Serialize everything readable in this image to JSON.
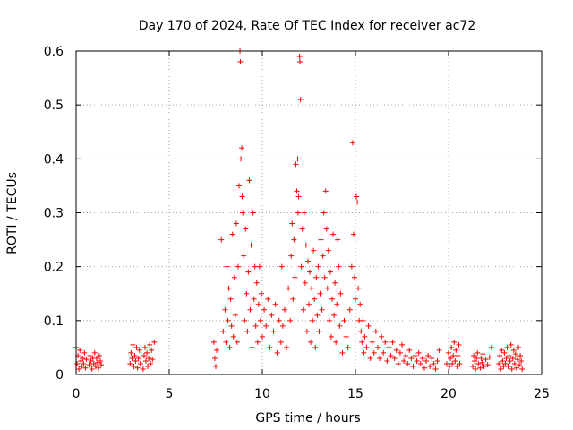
{
  "chart_data": {
    "type": "scatter",
    "title": "Day 170 of 2024, Rate Of TEC Index for receiver ac72",
    "xlabel": "GPS time / hours",
    "ylabel": "ROTI / TECUs",
    "xlim": [
      0,
      25
    ],
    "ylim": [
      0,
      0.6
    ],
    "xticks": [
      "0",
      "5",
      "10",
      "15",
      "20",
      "25"
    ],
    "yticks": [
      "0",
      "0.1",
      "0.2",
      "0.3",
      "0.4",
      "0.5",
      "0.6"
    ],
    "grid": true,
    "marker": "plus",
    "marker_color": "#ff0000",
    "series": [
      {
        "points": [
          [
            0.0,
            0.05
          ],
          [
            0.05,
            0.02
          ],
          [
            0.1,
            0.035
          ],
          [
            0.15,
            0.01
          ],
          [
            0.2,
            0.045
          ],
          [
            0.25,
            0.025
          ],
          [
            0.3,
            0.015
          ],
          [
            0.35,
            0.03
          ],
          [
            0.4,
            0.02
          ],
          [
            0.45,
            0.04
          ],
          [
            0.5,
            0.012
          ],
          [
            0.55,
            0.028
          ],
          [
            0.7,
            0.018
          ],
          [
            0.75,
            0.035
          ],
          [
            0.8,
            0.025
          ],
          [
            0.85,
            0.01
          ],
          [
            0.9,
            0.03
          ],
          [
            0.95,
            0.02
          ],
          [
            1.0,
            0.04
          ],
          [
            1.05,
            0.015
          ],
          [
            1.1,
            0.03
          ],
          [
            1.15,
            0.022
          ],
          [
            1.2,
            0.012
          ],
          [
            1.25,
            0.035
          ],
          [
            1.3,
            0.025
          ],
          [
            1.35,
            0.018
          ],
          [
            2.9,
            0.02
          ],
          [
            2.95,
            0.04
          ],
          [
            3.0,
            0.03
          ],
          [
            3.05,
            0.055
          ],
          [
            3.1,
            0.015
          ],
          [
            3.15,
            0.035
          ],
          [
            3.2,
            0.025
          ],
          [
            3.25,
            0.05
          ],
          [
            3.3,
            0.012
          ],
          [
            3.35,
            0.03
          ],
          [
            3.4,
            0.045
          ],
          [
            3.45,
            0.02
          ],
          [
            3.6,
            0.01
          ],
          [
            3.65,
            0.035
          ],
          [
            3.7,
            0.05
          ],
          [
            3.75,
            0.025
          ],
          [
            3.8,
            0.04
          ],
          [
            3.85,
            0.015
          ],
          [
            3.9,
            0.03
          ],
          [
            3.95,
            0.055
          ],
          [
            4.0,
            0.02
          ],
          [
            4.05,
            0.045
          ],
          [
            4.1,
            0.028
          ],
          [
            4.2,
            0.06
          ],
          [
            7.4,
            0.06
          ],
          [
            7.45,
            0.03
          ],
          [
            7.5,
            0.015
          ],
          [
            7.55,
            0.045
          ],
          [
            7.8,
            0.25
          ],
          [
            7.9,
            0.08
          ],
          [
            8.0,
            0.12
          ],
          [
            8.05,
            0.06
          ],
          [
            8.1,
            0.2
          ],
          [
            8.15,
            0.1
          ],
          [
            8.2,
            0.16
          ],
          [
            8.25,
            0.05
          ],
          [
            8.3,
            0.14
          ],
          [
            8.35,
            0.09
          ],
          [
            8.4,
            0.26
          ],
          [
            8.45,
            0.07
          ],
          [
            8.5,
            0.18
          ],
          [
            8.55,
            0.11
          ],
          [
            8.6,
            0.28
          ],
          [
            8.65,
            0.06
          ],
          [
            8.7,
            0.2
          ],
          [
            8.75,
            0.35
          ],
          [
            8.8,
            0.6
          ],
          [
            8.82,
            0.58
          ],
          [
            8.85,
            0.4
          ],
          [
            8.9,
            0.42
          ],
          [
            8.92,
            0.33
          ],
          [
            8.95,
            0.3
          ],
          [
            9.0,
            0.22
          ],
          [
            9.05,
            0.1
          ],
          [
            9.1,
            0.27
          ],
          [
            9.15,
            0.15
          ],
          [
            9.2,
            0.08
          ],
          [
            9.25,
            0.19
          ],
          [
            9.3,
            0.36
          ],
          [
            9.35,
            0.12
          ],
          [
            9.4,
            0.24
          ],
          [
            9.45,
            0.05
          ],
          [
            9.5,
            0.3
          ],
          [
            9.55,
            0.14
          ],
          [
            9.6,
            0.2
          ],
          [
            9.65,
            0.09
          ],
          [
            9.7,
            0.17
          ],
          [
            9.75,
            0.06
          ],
          [
            9.8,
            0.13
          ],
          [
            9.85,
            0.2
          ],
          [
            9.9,
            0.1
          ],
          [
            9.95,
            0.15
          ],
          [
            10.0,
            0.07
          ],
          [
            10.1,
            0.12
          ],
          [
            10.2,
            0.09
          ],
          [
            10.3,
            0.14
          ],
          [
            10.4,
            0.05
          ],
          [
            10.5,
            0.11
          ],
          [
            10.6,
            0.08
          ],
          [
            10.7,
            0.13
          ],
          [
            10.8,
            0.04
          ],
          [
            10.9,
            0.1
          ],
          [
            11.0,
            0.06
          ],
          [
            11.05,
            0.2
          ],
          [
            11.1,
            0.09
          ],
          [
            11.2,
            0.12
          ],
          [
            11.3,
            0.05
          ],
          [
            11.4,
            0.16
          ],
          [
            11.5,
            0.1
          ],
          [
            11.55,
            0.22
          ],
          [
            11.6,
            0.28
          ],
          [
            11.65,
            0.14
          ],
          [
            11.7,
            0.25
          ],
          [
            11.75,
            0.18
          ],
          [
            11.8,
            0.39
          ],
          [
            11.85,
            0.34
          ],
          [
            11.9,
            0.4
          ],
          [
            11.92,
            0.3
          ],
          [
            11.95,
            0.33
          ],
          [
            12.0,
            0.59
          ],
          [
            12.02,
            0.58
          ],
          [
            12.05,
            0.51
          ],
          [
            12.1,
            0.2
          ],
          [
            12.15,
            0.27
          ],
          [
            12.2,
            0.12
          ],
          [
            12.25,
            0.3
          ],
          [
            12.3,
            0.17
          ],
          [
            12.35,
            0.24
          ],
          [
            12.4,
            0.08
          ],
          [
            12.45,
            0.21
          ],
          [
            12.5,
            0.13
          ],
          [
            12.55,
            0.19
          ],
          [
            12.6,
            0.06
          ],
          [
            12.65,
            0.16
          ],
          [
            12.7,
            0.1
          ],
          [
            12.75,
            0.23
          ],
          [
            12.8,
            0.14
          ],
          [
            12.85,
            0.05
          ],
          [
            12.9,
            0.18
          ],
          [
            12.95,
            0.11
          ],
          [
            13.0,
            0.2
          ],
          [
            13.05,
            0.08
          ],
          [
            13.1,
            0.15
          ],
          [
            13.15,
            0.25
          ],
          [
            13.2,
            0.12
          ],
          [
            13.25,
            0.22
          ],
          [
            13.3,
            0.3
          ],
          [
            13.35,
            0.18
          ],
          [
            13.4,
            0.34
          ],
          [
            13.45,
            0.27
          ],
          [
            13.5,
            0.16
          ],
          [
            13.55,
            0.23
          ],
          [
            13.6,
            0.1
          ],
          [
            13.65,
            0.19
          ],
          [
            13.7,
            0.07
          ],
          [
            13.75,
            0.14
          ],
          [
            13.8,
            0.26
          ],
          [
            13.85,
            0.11
          ],
          [
            13.9,
            0.17
          ],
          [
            13.95,
            0.06
          ],
          [
            14.0,
            0.13
          ],
          [
            14.05,
            0.25
          ],
          [
            14.1,
            0.2
          ],
          [
            14.15,
            0.09
          ],
          [
            14.2,
            0.15
          ],
          [
            14.3,
            0.04
          ],
          [
            14.4,
            0.1
          ],
          [
            14.5,
            0.07
          ],
          [
            14.6,
            0.05
          ],
          [
            14.7,
            0.12
          ],
          [
            14.8,
            0.2
          ],
          [
            14.85,
            0.43
          ],
          [
            14.9,
            0.26
          ],
          [
            14.95,
            0.18
          ],
          [
            15.0,
            0.14
          ],
          [
            15.05,
            0.33
          ],
          [
            15.1,
            0.32
          ],
          [
            15.15,
            0.16
          ],
          [
            15.2,
            0.1
          ],
          [
            15.25,
            0.13
          ],
          [
            15.3,
            0.08
          ],
          [
            15.35,
            0.06
          ],
          [
            15.4,
            0.1
          ],
          [
            15.45,
            0.04
          ],
          [
            15.5,
            0.07
          ],
          [
            15.6,
            0.05
          ],
          [
            15.7,
            0.09
          ],
          [
            15.8,
            0.03
          ],
          [
            15.9,
            0.06
          ],
          [
            16.0,
            0.04
          ],
          [
            16.1,
            0.08
          ],
          [
            16.2,
            0.05
          ],
          [
            16.3,
            0.03
          ],
          [
            16.4,
            0.07
          ],
          [
            16.5,
            0.04
          ],
          [
            16.6,
            0.06
          ],
          [
            16.7,
            0.025
          ],
          [
            16.8,
            0.05
          ],
          [
            16.9,
            0.035
          ],
          [
            17.0,
            0.06
          ],
          [
            17.1,
            0.03
          ],
          [
            17.2,
            0.045
          ],
          [
            17.3,
            0.02
          ],
          [
            17.4,
            0.04
          ],
          [
            17.5,
            0.055
          ],
          [
            17.6,
            0.025
          ],
          [
            17.7,
            0.035
          ],
          [
            17.8,
            0.02
          ],
          [
            17.9,
            0.045
          ],
          [
            18.0,
            0.03
          ],
          [
            18.1,
            0.015
          ],
          [
            18.2,
            0.035
          ],
          [
            18.3,
            0.025
          ],
          [
            18.4,
            0.04
          ],
          [
            18.5,
            0.02
          ],
          [
            18.6,
            0.03
          ],
          [
            18.7,
            0.012
          ],
          [
            18.8,
            0.025
          ],
          [
            18.9,
            0.035
          ],
          [
            19.0,
            0.015
          ],
          [
            19.1,
            0.03
          ],
          [
            19.2,
            0.02
          ],
          [
            19.3,
            0.01
          ],
          [
            19.4,
            0.025
          ],
          [
            19.5,
            0.045
          ],
          [
            19.9,
            0.02
          ],
          [
            20.0,
            0.04
          ],
          [
            20.05,
            0.015
          ],
          [
            20.1,
            0.03
          ],
          [
            20.15,
            0.05
          ],
          [
            20.2,
            0.02
          ],
          [
            20.25,
            0.035
          ],
          [
            20.3,
            0.06
          ],
          [
            20.35,
            0.025
          ],
          [
            20.4,
            0.045
          ],
          [
            20.45,
            0.015
          ],
          [
            20.5,
            0.035
          ],
          [
            20.55,
            0.055
          ],
          [
            20.6,
            0.02
          ],
          [
            21.3,
            0.015
          ],
          [
            21.35,
            0.035
          ],
          [
            21.4,
            0.025
          ],
          [
            21.45,
            0.01
          ],
          [
            21.5,
            0.03
          ],
          [
            21.55,
            0.04
          ],
          [
            21.6,
            0.02
          ],
          [
            21.7,
            0.012
          ],
          [
            21.75,
            0.03
          ],
          [
            21.8,
            0.022
          ],
          [
            21.85,
            0.038
          ],
          [
            21.9,
            0.015
          ],
          [
            22.0,
            0.028
          ],
          [
            22.1,
            0.018
          ],
          [
            22.2,
            0.032
          ],
          [
            22.3,
            0.05
          ],
          [
            22.7,
            0.02
          ],
          [
            22.75,
            0.035
          ],
          [
            22.8,
            0.01
          ],
          [
            22.85,
            0.045
          ],
          [
            22.9,
            0.025
          ],
          [
            22.95,
            0.015
          ],
          [
            23.0,
            0.04
          ],
          [
            23.05,
            0.02
          ],
          [
            23.1,
            0.03
          ],
          [
            23.15,
            0.05
          ],
          [
            23.2,
            0.015
          ],
          [
            23.25,
            0.035
          ],
          [
            23.3,
            0.025
          ],
          [
            23.35,
            0.055
          ],
          [
            23.4,
            0.01
          ],
          [
            23.45,
            0.03
          ],
          [
            23.5,
            0.045
          ],
          [
            23.55,
            0.02
          ],
          [
            23.6,
            0.038
          ],
          [
            23.65,
            0.012
          ],
          [
            23.7,
            0.028
          ],
          [
            23.75,
            0.05
          ],
          [
            23.8,
            0.018
          ],
          [
            23.85,
            0.035
          ],
          [
            23.9,
            0.025
          ],
          [
            23.95,
            0.01
          ]
        ]
      }
    ]
  }
}
